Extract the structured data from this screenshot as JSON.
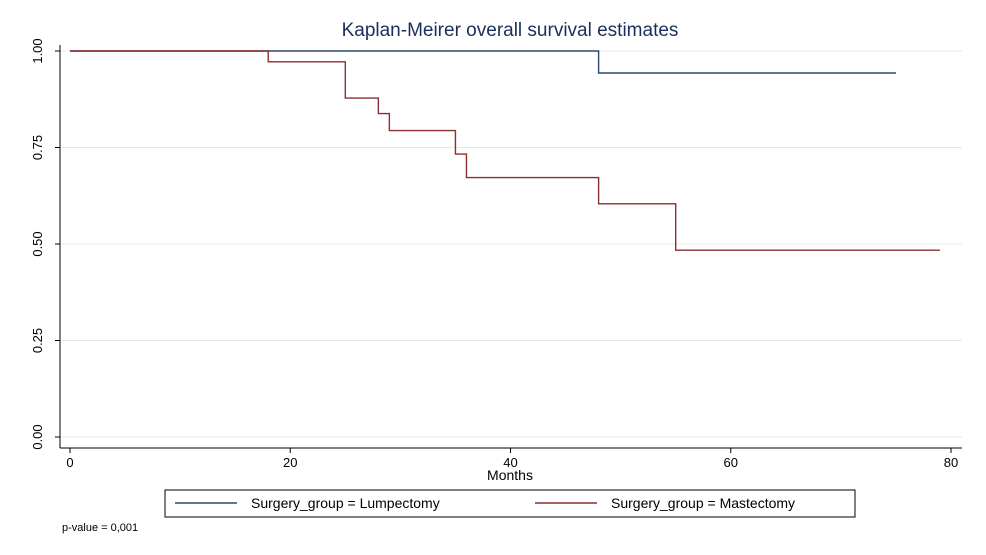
{
  "chart_data": {
    "type": "line",
    "subtype": "kaplan-meier-step",
    "title": "Kaplan-Meirer overall survival estimates",
    "xlabel": "Months",
    "ylabel": "",
    "xlim": [
      0,
      80
    ],
    "ylim": [
      0,
      1
    ],
    "x_ticks": [
      0,
      20,
      40,
      60,
      80
    ],
    "x_tick_labels": [
      "0",
      "20",
      "40",
      "60",
      "80"
    ],
    "y_ticks": [
      0,
      0.25,
      0.5,
      0.75,
      1
    ],
    "y_tick_labels": [
      "0.00",
      "0.25",
      "0.50",
      "0.75",
      "1.00"
    ],
    "grid": true,
    "legend_position": "bottom",
    "series": [
      {
        "name": "Surgery_group = Lumpectomy",
        "color": "#2b4a6f",
        "x": [
          0,
          48,
          75
        ],
        "y": [
          1.0,
          0.943,
          0.943
        ]
      },
      {
        "name": "Surgery_group = Mastectomy",
        "color": "#8c2f2f",
        "x": [
          0,
          18,
          25,
          28,
          29,
          35,
          36,
          48,
          55,
          79
        ],
        "y": [
          1.0,
          0.972,
          0.878,
          0.838,
          0.794,
          0.733,
          0.672,
          0.604,
          0.484,
          0.484
        ]
      }
    ],
    "annotations": [
      "p-value = 0,001"
    ]
  },
  "colors": {
    "title": "#1a2f5a",
    "grid": "#e8e8e8",
    "axis": "#000000"
  }
}
